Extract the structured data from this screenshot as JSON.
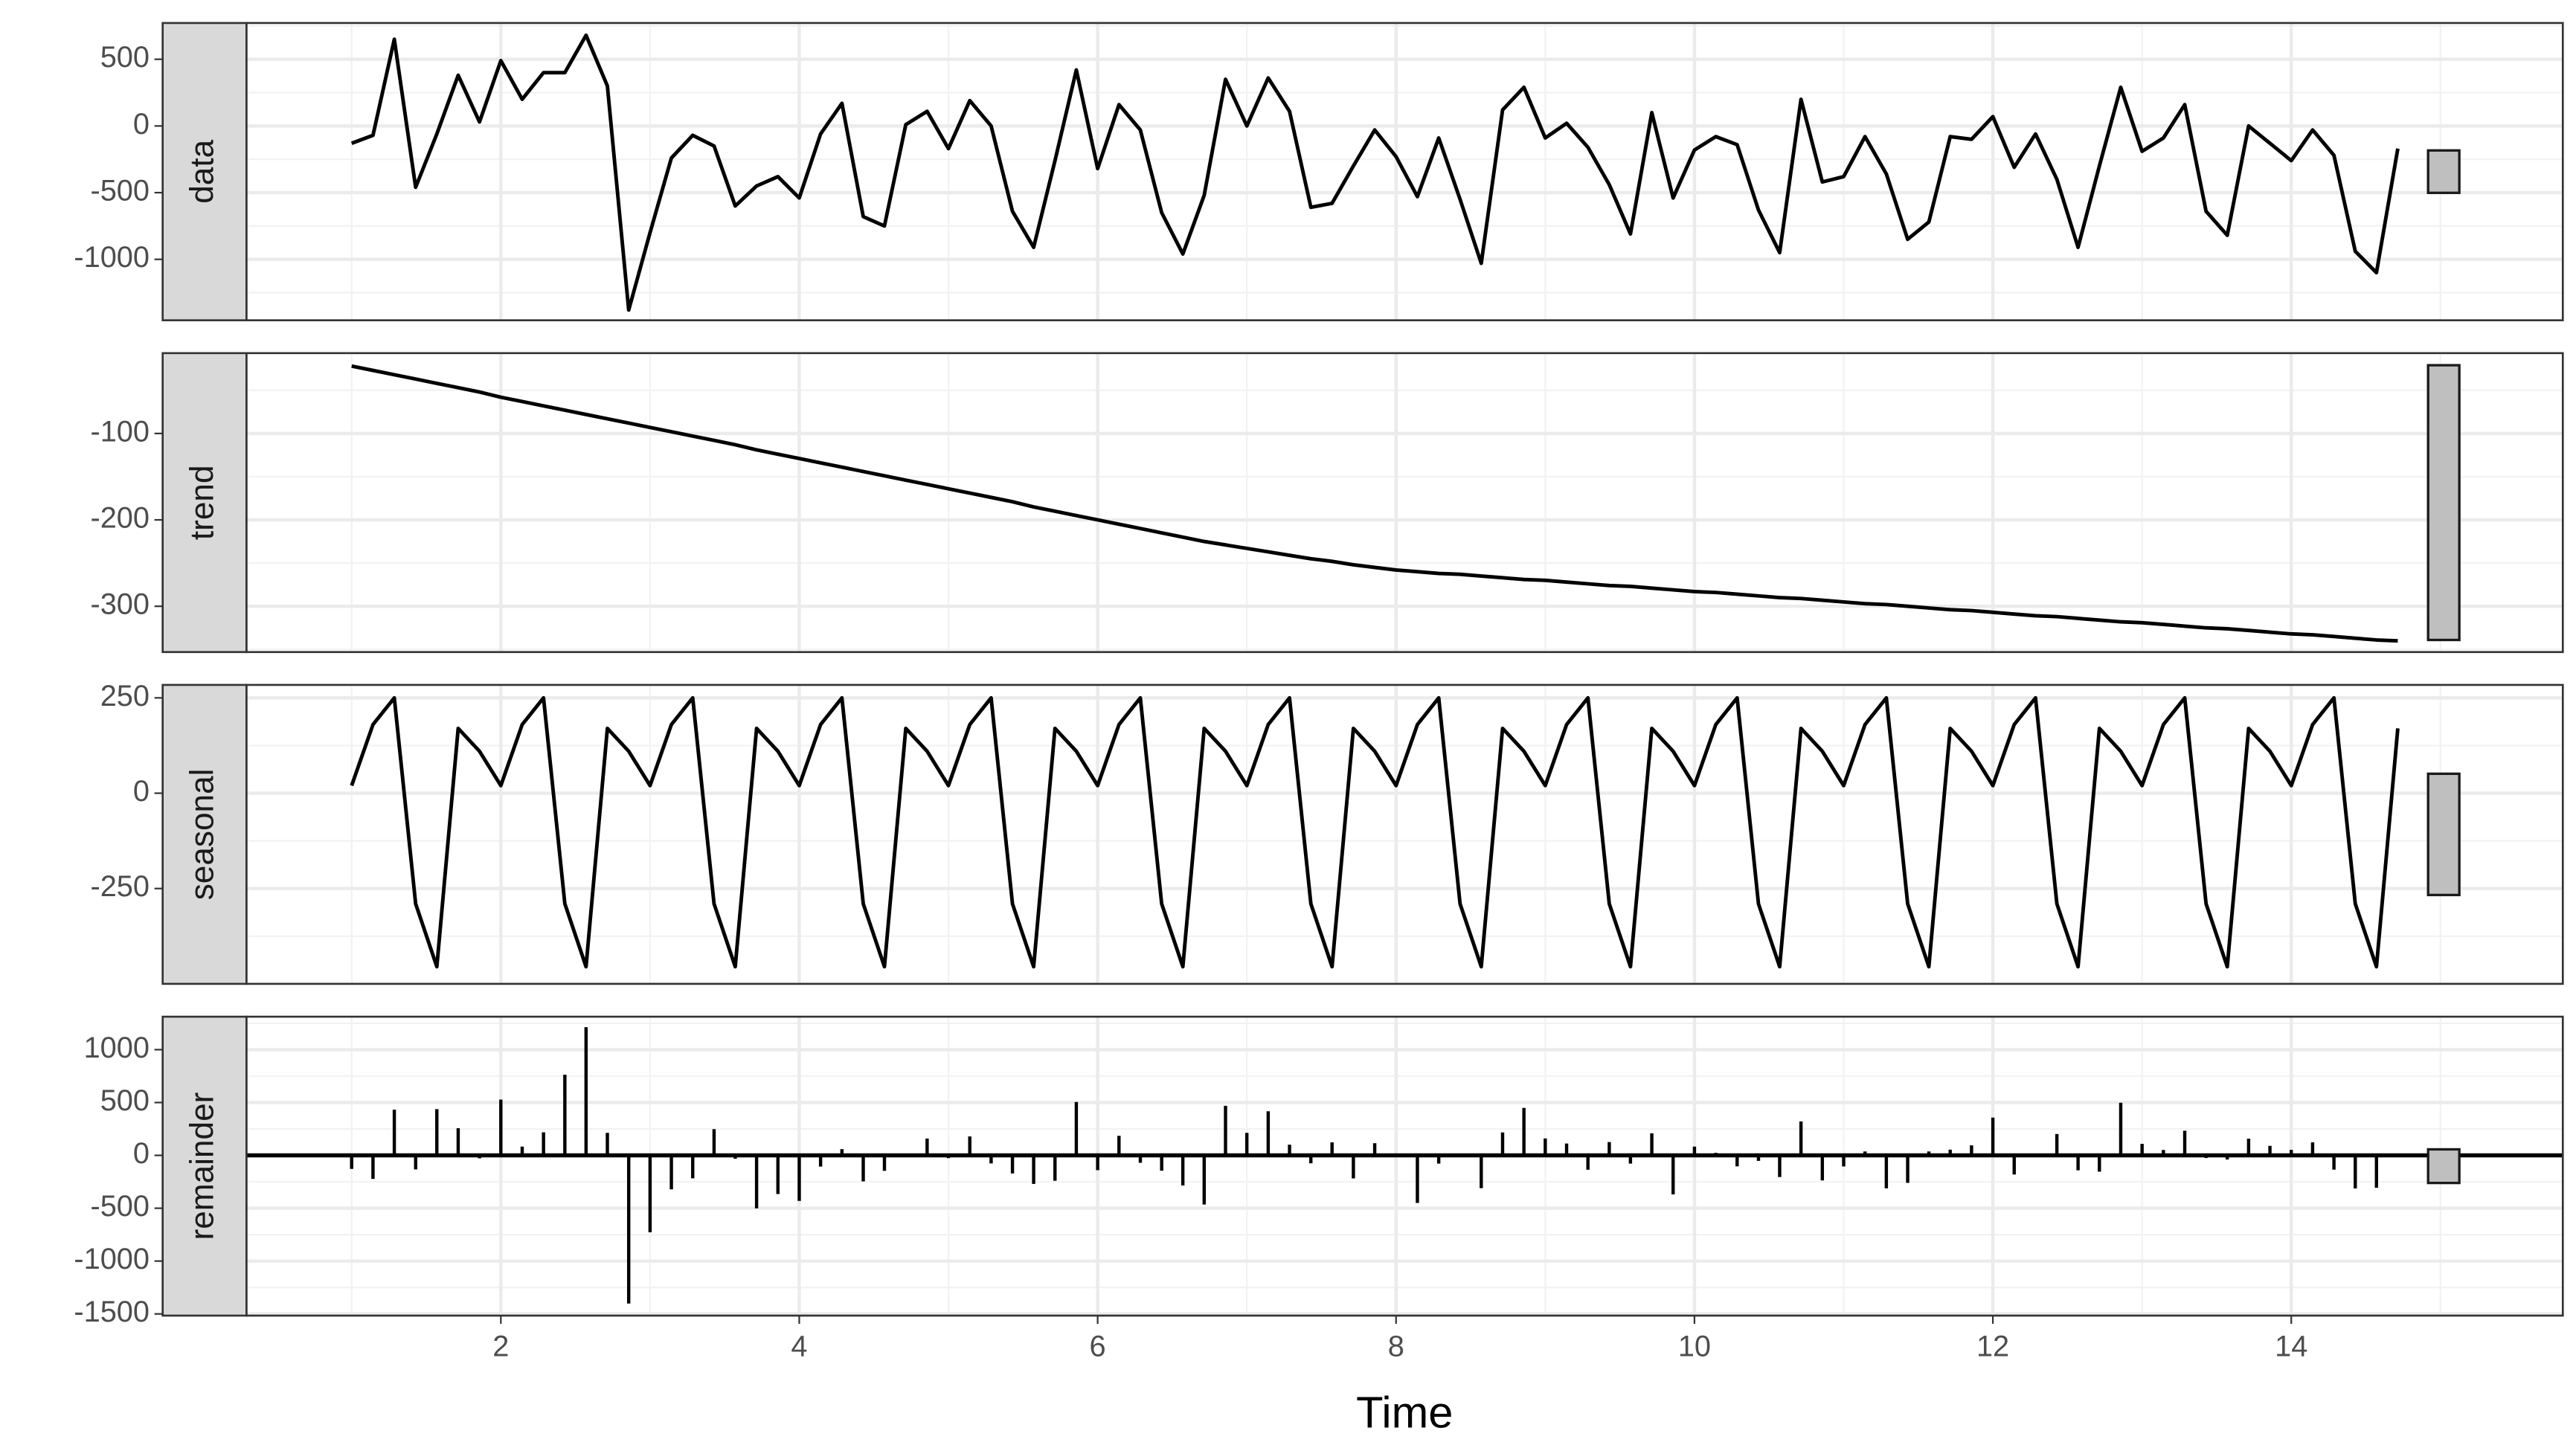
{
  "chart_data": {
    "type": "decomposition",
    "xlabel": "Time",
    "xlim": [
      0.295,
      15.82
    ],
    "xticks": [
      2,
      4,
      6,
      8,
      10,
      12,
      14
    ],
    "grid": true,
    "color": "#000000",
    "range_bar": 318,
    "x": [
      1,
      1.143,
      1.286,
      1.429,
      1.571,
      1.714,
      1.857,
      2,
      2.143,
      2.286,
      2.429,
      2.571,
      2.714,
      2.857,
      3,
      3.143,
      3.286,
      3.429,
      3.571,
      3.714,
      3.857,
      4,
      4.143,
      4.286,
      4.429,
      4.571,
      4.714,
      4.857,
      5,
      5.143,
      5.286,
      5.429,
      5.571,
      5.714,
      5.857,
      6,
      6.143,
      6.286,
      6.429,
      6.571,
      6.714,
      6.857,
      7,
      7.143,
      7.286,
      7.429,
      7.571,
      7.714,
      7.857,
      8,
      8.143,
      8.286,
      8.429,
      8.571,
      8.714,
      8.857,
      9,
      9.143,
      9.286,
      9.429,
      9.571,
      9.714,
      9.857,
      10,
      10.143,
      10.286,
      10.429,
      10.571,
      10.714,
      10.857,
      11,
      11.143,
      11.286,
      11.429,
      11.571,
      11.714,
      11.857,
      12,
      12.143,
      12.286,
      12.429,
      12.571,
      12.714,
      12.857,
      13,
      13.143,
      13.286,
      13.429,
      13.571,
      13.714,
      13.857,
      14,
      14.143,
      14.286,
      14.429,
      14.571,
      14.714
    ],
    "panels": [
      {
        "name": "data",
        "style": "line",
        "ylim": [
          -1457,
          772
        ],
        "yticks": [
          -1000,
          -500,
          0,
          500
        ],
        "values": [
          -130,
          -70,
          650,
          -460,
          -60,
          380,
          30,
          490,
          200,
          400,
          400,
          680,
          300,
          -1380,
          -800,
          -240,
          -70,
          -150,
          -600,
          -450,
          -380,
          -540,
          -60,
          170,
          -680,
          -750,
          10,
          110,
          -170,
          190,
          0,
          -640,
          -910,
          -260,
          420,
          -320,
          160,
          -30,
          -650,
          -960,
          -520,
          350,
          0,
          360,
          110,
          -610,
          -580,
          -300,
          -30,
          -230,
          -530,
          -90,
          -550,
          -1030,
          120,
          290,
          -90,
          20,
          -160,
          -440,
          -810,
          100,
          -540,
          -180,
          -80,
          -140,
          -630,
          -950,
          200,
          -420,
          -380,
          -80,
          -360,
          -850,
          -720,
          -80,
          -100,
          70,
          -310,
          -60,
          -400,
          -910,
          -300,
          290,
          -190,
          -90,
          160,
          -640,
          -820,
          0,
          -130,
          -260,
          -30,
          -220,
          -940,
          -1100,
          -170
        ]
      },
      {
        "name": "trend",
        "style": "line",
        "ylim": [
          -353,
          -7
        ],
        "yticks": [
          -300,
          -200,
          -100
        ],
        "values": [
          -22,
          -27,
          -32,
          -37,
          -42,
          -47,
          -52,
          -58,
          -63,
          -68,
          -73,
          -78,
          -83,
          -88,
          -93,
          -98,
          -103,
          -108,
          -113,
          -119,
          -124,
          -129,
          -134,
          -139,
          -144,
          -149,
          -154,
          -159,
          -164,
          -169,
          -174,
          -179,
          -185,
          -190,
          -195,
          -200,
          -205,
          -210,
          -215,
          -220,
          -225,
          -229,
          -233,
          -237,
          -241,
          -245,
          -248,
          -252,
          -255,
          -258,
          -260,
          -262,
          -263,
          -265,
          -267,
          -269,
          -270,
          -272,
          -274,
          -276,
          -277,
          -279,
          -281,
          -283,
          -284,
          -286,
          -288,
          -290,
          -291,
          -293,
          -295,
          -297,
          -298,
          -300,
          -302,
          -304,
          -305,
          -307,
          -309,
          -311,
          -312,
          -314,
          -316,
          -318,
          -319,
          -321,
          -323,
          -325,
          -326,
          -328,
          -330,
          -332,
          -333,
          -335,
          -337,
          -339,
          -340
        ]
      },
      {
        "name": "seasonal",
        "style": "line",
        "ylim": [
          -500,
          284
        ],
        "yticks": [
          -250,
          0,
          250
        ],
        "values": [
          20,
          180,
          250,
          -290,
          -455,
          170,
          110,
          20,
          180,
          250,
          -290,
          -455,
          170,
          110,
          20,
          180,
          250,
          -290,
          -455,
          170,
          110,
          20,
          180,
          250,
          -290,
          -455,
          170,
          110,
          20,
          180,
          250,
          -290,
          -455,
          170,
          110,
          20,
          180,
          250,
          -290,
          -455,
          170,
          110,
          20,
          180,
          250,
          -290,
          -455,
          170,
          110,
          20,
          180,
          250,
          -290,
          -455,
          170,
          110,
          20,
          180,
          250,
          -290,
          -455,
          170,
          110,
          20,
          180,
          250,
          -290,
          -455,
          170,
          110,
          20,
          180,
          250,
          -290,
          -455,
          170,
          110,
          20,
          180,
          250,
          -290,
          -455,
          170,
          110,
          20,
          180,
          250,
          -290,
          -455,
          170,
          110,
          20,
          180,
          250,
          -290,
          -455,
          170
        ]
      },
      {
        "name": "remainder",
        "style": "bar",
        "ylim": [
          -1516,
          1312
        ],
        "yticks": [
          -1500,
          -1000,
          -500,
          0,
          500,
          1000
        ],
        "values": [
          -128,
          -223,
          432,
          -133,
          437,
          257,
          -28,
          528,
          83,
          218,
          763,
          1213,
          213,
          -1402,
          -727,
          -322,
          -217,
          248,
          -32,
          -501,
          -366,
          -431,
          -106,
          59,
          -246,
          -146,
          -6,
          159,
          -26,
          179,
          -76,
          -171,
          -270,
          -240,
          505,
          -140,
          185,
          -70,
          -145,
          -285,
          -465,
          469,
          213,
          417,
          101,
          -75,
          123,
          -218,
          115,
          8,
          -450,
          -78,
          3,
          -310,
          217,
          449,
          160,
          112,
          -136,
          126,
          -78,
          209,
          -369,
          83,
          24,
          -104,
          -52,
          -205,
          321,
          -237,
          -105,
          37,
          -312,
          -260,
          37,
          54,
          95,
          357,
          -181,
          1,
          202,
          -141,
          -154,
          498,
          109,
          51,
          233,
          -25,
          -39,
          158,
          90,
          52,
          123,
          -135,
          -313,
          -306,
          0
        ]
      }
    ]
  }
}
